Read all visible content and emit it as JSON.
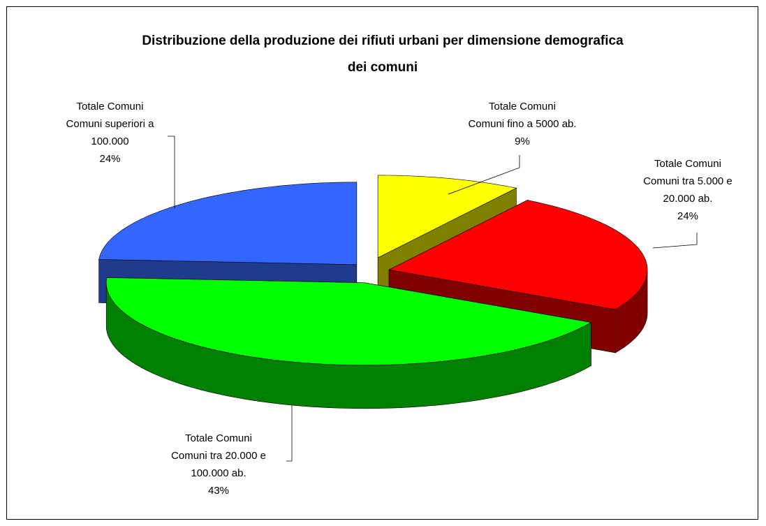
{
  "chart_data": {
    "type": "pie",
    "title": "Distribuzione della produzione dei rifiuti urbani per dimensione  demografica dei comuni",
    "series_name": "Totale Comuni",
    "categories": [
      "Comuni fino a 5000 ab.",
      "Comuni tra 5.000 e 20.000 ab.",
      "Comuni tra 20.000 e 100.000 ab.",
      "Comuni superiori a 100.000"
    ],
    "values": [
      9,
      24,
      43,
      24
    ],
    "value_labels": [
      "9%",
      "24%",
      "43%",
      "24%"
    ],
    "colors": [
      "#ffff00",
      "#ff0000",
      "#00ff00",
      "#3366ff"
    ],
    "side_colors": [
      "#808000",
      "#800000",
      "#008000",
      "#1f3c8c"
    ]
  }
}
